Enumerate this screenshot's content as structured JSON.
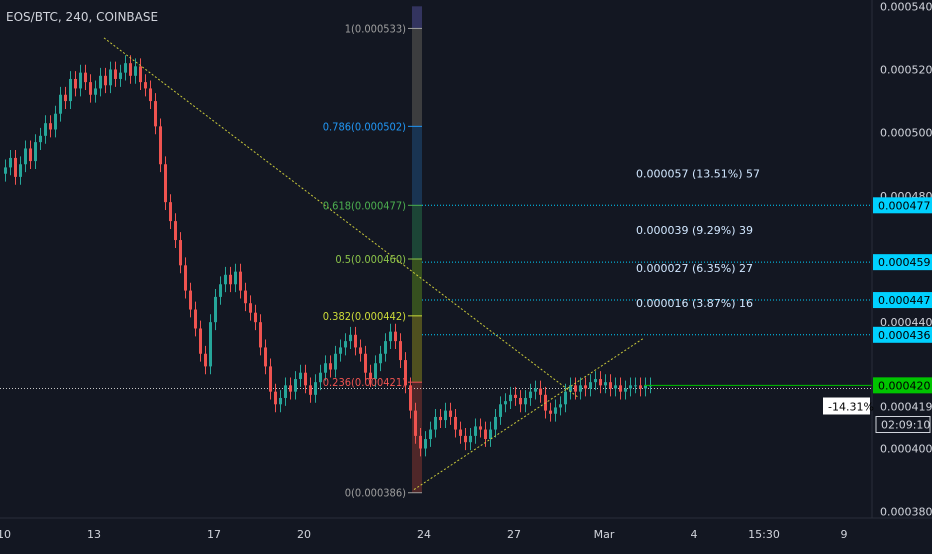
{
  "header": {
    "title": "EOS/BTC, 240, COINBASE"
  },
  "colors": {
    "background": "#131722",
    "up": "#26a69a",
    "down": "#ef5350",
    "axis_text": "#d1d4dc",
    "target_line": "#00d1ff",
    "current_price": "#00c400",
    "trend_line": "#c9c93a"
  },
  "chart_data": {
    "type": "candlestick",
    "symbol": "EOS/BTC",
    "interval": "240",
    "exchange": "COINBASE",
    "ylim": [
      0.000378,
      0.000542
    ],
    "y_ticks": [
      "0.000540",
      "0.000520",
      "0.000500",
      "0.000480",
      "0.000460",
      "0.000440",
      "0.000420",
      "0.000400",
      "0.000380"
    ],
    "x_ticks": [
      "10",
      "13",
      "17",
      "20",
      "24",
      "27",
      "Mar",
      "4",
      "15:30",
      "9"
    ],
    "x_tick_index": [
      0,
      18,
      42,
      60,
      84,
      102,
      120,
      138,
      152,
      168
    ],
    "candles_count": 130,
    "close_series": [
      0.000489,
      0.000492,
      0.000486,
      0.00049,
      0.000495,
      0.000491,
      0.000497,
      0.000499,
      0.000503,
      0.000501,
      0.000506,
      0.000512,
      0.00051,
      0.000517,
      0.000514,
      0.000519,
      0.000516,
      0.000512,
      0.000514,
      0.000518,
      0.000515,
      0.00052,
      0.000517,
      0.000519,
      0.000522,
      0.000518,
      0.000521,
      0.000516,
      0.000514,
      0.00051,
      0.000502,
      0.00049,
      0.000478,
      0.000472,
      0.000466,
      0.000458,
      0.00045,
      0.000444,
      0.000438,
      0.00043,
      0.000426,
      0.00044,
      0.000448,
      0.000452,
      0.000455,
      0.000452,
      0.000456,
      0.00045,
      0.000446,
      0.000443,
      0.00044,
      0.000432,
      0.000426,
      0.000418,
      0.000414,
      0.000416,
      0.00042,
      0.000418,
      0.000422,
      0.000424,
      0.00042,
      0.000417,
      0.000421,
      0.000424,
      0.000427,
      0.000425,
      0.00043,
      0.000432,
      0.000434,
      0.000436,
      0.000432,
      0.00043,
      0.000424,
      0.000422,
      0.000427,
      0.00043,
      0.000434,
      0.000437,
      0.000434,
      0.000428,
      0.00042,
      0.000412,
      0.000404,
      0.0004,
      0.000403,
      0.000406,
      0.00041,
      0.000409,
      0.000412,
      0.00041,
      0.000406,
      0.000404,
      0.000402,
      0.000404,
      0.000407,
      0.000406,
      0.000403,
      0.000406,
      0.00041,
      0.000414,
      0.000415,
      0.000417,
      0.000416,
      0.000414,
      0.000416,
      0.000418,
      0.000419,
      0.000417,
      0.000412,
      0.000411,
      0.000413,
      0.000414,
      0.000418,
      0.00042,
      0.000418,
      0.00042,
      0.000419,
      0.000421,
      0.000422,
      0.00042,
      0.000421,
      0.000419,
      0.00042,
      0.000418,
      0.000419,
      0.00042,
      0.00042,
      0.000419,
      0.00042,
      0.00042
    ],
    "fib_levels": [
      {
        "ratio": "1",
        "price": 0.000533,
        "label": "1(0.000533)",
        "color": "#9e9e9e"
      },
      {
        "ratio": "0.786",
        "price": 0.000502,
        "label": "0.786(0.000502)",
        "color": "#2196f3"
      },
      {
        "ratio": "0.618",
        "price": 0.000477,
        "label": "0.618(0.000477)",
        "color": "#4caf50"
      },
      {
        "ratio": "0.5",
        "price": 0.00046,
        "label": "0.5(0.000460)",
        "color": "#8bc34a"
      },
      {
        "ratio": "0.382",
        "price": 0.000442,
        "label": "0.382(0.000442)",
        "color": "#cddc39"
      },
      {
        "ratio": "0.236",
        "price": 0.000421,
        "label": "0.236(0.000421)",
        "color": "#ef5350"
      },
      {
        "ratio": "0",
        "price": 0.000386,
        "label": "0(0.000386)",
        "color": "#9e9e9e"
      }
    ],
    "target_lines": [
      {
        "price": 0.000477,
        "axis_label": "0.000477",
        "annotation": "0.000057 (13.51%) 57"
      },
      {
        "price": 0.000459,
        "axis_label": "0.000459",
        "annotation": "0.000039 (9.29%) 39"
      },
      {
        "price": 0.000447,
        "axis_label": "0.000447",
        "annotation": "0.000027 (6.35%) 27"
      },
      {
        "price": 0.000436,
        "axis_label": "0.000436",
        "annotation": "0.000016 (3.87%) 16"
      }
    ],
    "current_price": {
      "price": 0.00042,
      "label": "0.000420"
    },
    "crosshair": {
      "price": 0.000419,
      "label": "0.000419",
      "percent": "-14.31%",
      "countdown": "02:09:10"
    },
    "trend_lines": [
      {
        "from": [
          20,
          0.00053
        ],
        "to": [
          115,
          0.000416
        ]
      },
      {
        "from": [
          82,
          0.000387
        ],
        "to": [
          128,
          0.000435
        ]
      }
    ],
    "fib_range_x": [
      82,
      84
    ]
  }
}
